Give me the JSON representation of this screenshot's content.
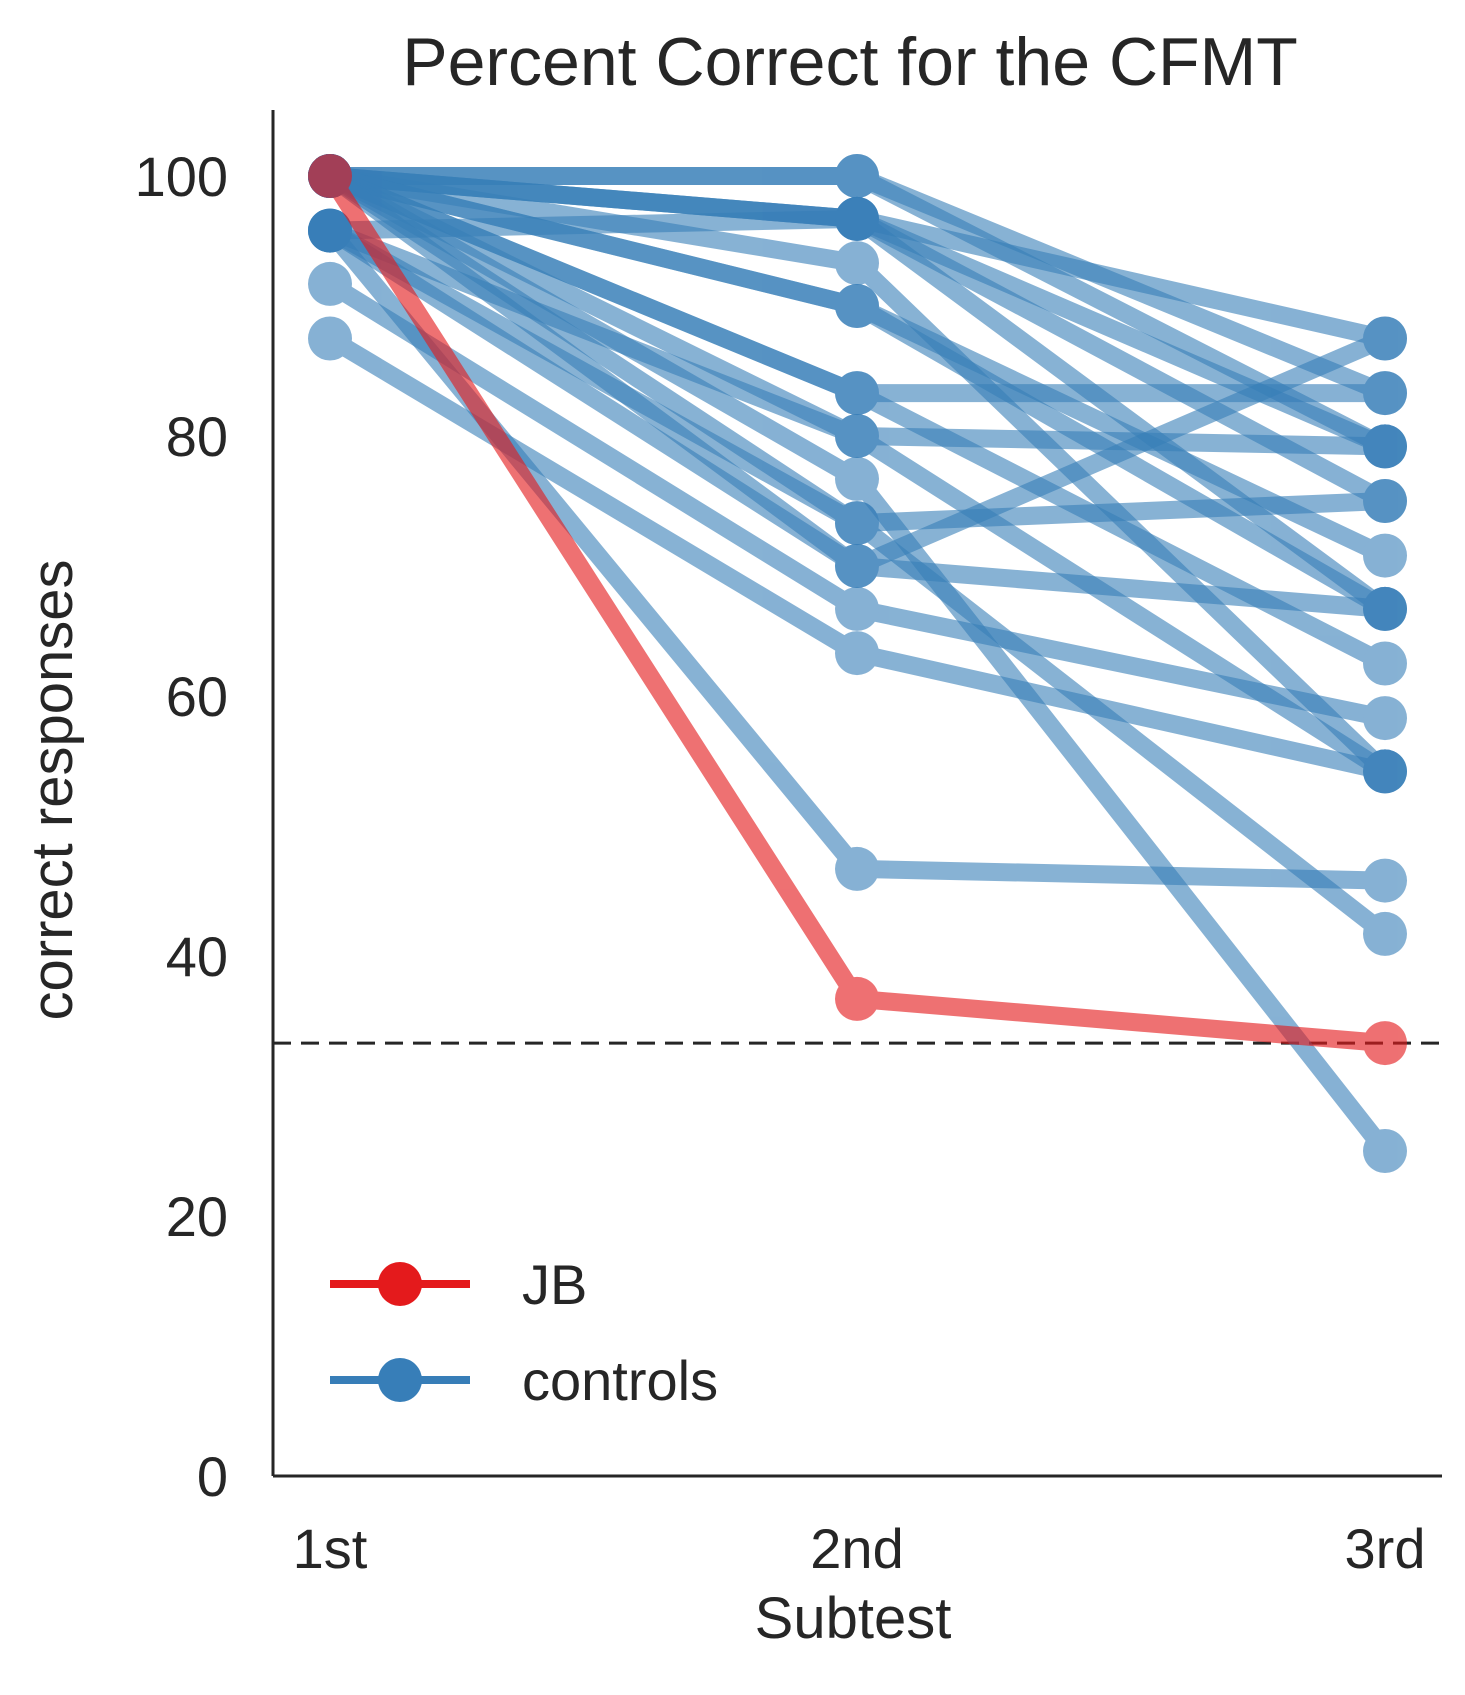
{
  "chart_data": {
    "type": "line",
    "title": "Percent Correct for the CFMT",
    "xlabel": "Subtest",
    "ylabel": "correct responses",
    "categories": [
      "1st",
      "2nd",
      "3rd"
    ],
    "ylim": [
      0,
      105
    ],
    "yticks": [
      0,
      20,
      40,
      60,
      80,
      100
    ],
    "chance_level": 33.3,
    "grid": false,
    "legend": {
      "placement": "lower-left",
      "entries": [
        {
          "label": "JB",
          "color": "#e41a1c"
        },
        {
          "label": "controls",
          "color": "#377eb8"
        }
      ]
    },
    "colors": {
      "jb": "#e41a1c",
      "controls": "#377eb8",
      "chance_line": "#262626",
      "axes": "#262626"
    },
    "series": [
      {
        "name": "JB",
        "group": "JB",
        "values": [
          100,
          36.7,
          33.3
        ]
      },
      {
        "group": "controls",
        "values": [
          100,
          100,
          79.2
        ]
      },
      {
        "group": "controls",
        "values": [
          100,
          100,
          83.3
        ]
      },
      {
        "group": "controls",
        "values": [
          100,
          96.7,
          87.5
        ]
      },
      {
        "group": "controls",
        "values": [
          100,
          96.7,
          79.2
        ]
      },
      {
        "group": "controls",
        "values": [
          100,
          96.7,
          66.7
        ]
      },
      {
        "group": "controls",
        "values": [
          100,
          93.3,
          54.2
        ]
      },
      {
        "group": "controls",
        "values": [
          100,
          90,
          70.8
        ]
      },
      {
        "group": "controls",
        "values": [
          100,
          90,
          66.7
        ]
      },
      {
        "group": "controls",
        "values": [
          100,
          83.3,
          83.3
        ]
      },
      {
        "group": "controls",
        "values": [
          100,
          83.3,
          62.5
        ]
      },
      {
        "group": "controls",
        "values": [
          100,
          80,
          79.2
        ]
      },
      {
        "group": "controls",
        "values": [
          100,
          76.7,
          25
        ]
      },
      {
        "group": "controls",
        "values": [
          100,
          73.3,
          75
        ]
      },
      {
        "group": "controls",
        "values": [
          100,
          70,
          87.5
        ]
      },
      {
        "group": "controls",
        "values": [
          95.8,
          96.7,
          75
        ]
      },
      {
        "group": "controls",
        "values": [
          95.8,
          80,
          54.2
        ]
      },
      {
        "group": "controls",
        "values": [
          95.8,
          73.3,
          41.7
        ]
      },
      {
        "group": "controls",
        "values": [
          95.8,
          70,
          66.7
        ]
      },
      {
        "group": "controls",
        "values": [
          95.8,
          46.7,
          45.8
        ]
      },
      {
        "group": "controls",
        "values": [
          91.7,
          66.7,
          58.3
        ]
      },
      {
        "group": "controls",
        "values": [
          87.5,
          63.3,
          54.2
        ]
      }
    ]
  }
}
